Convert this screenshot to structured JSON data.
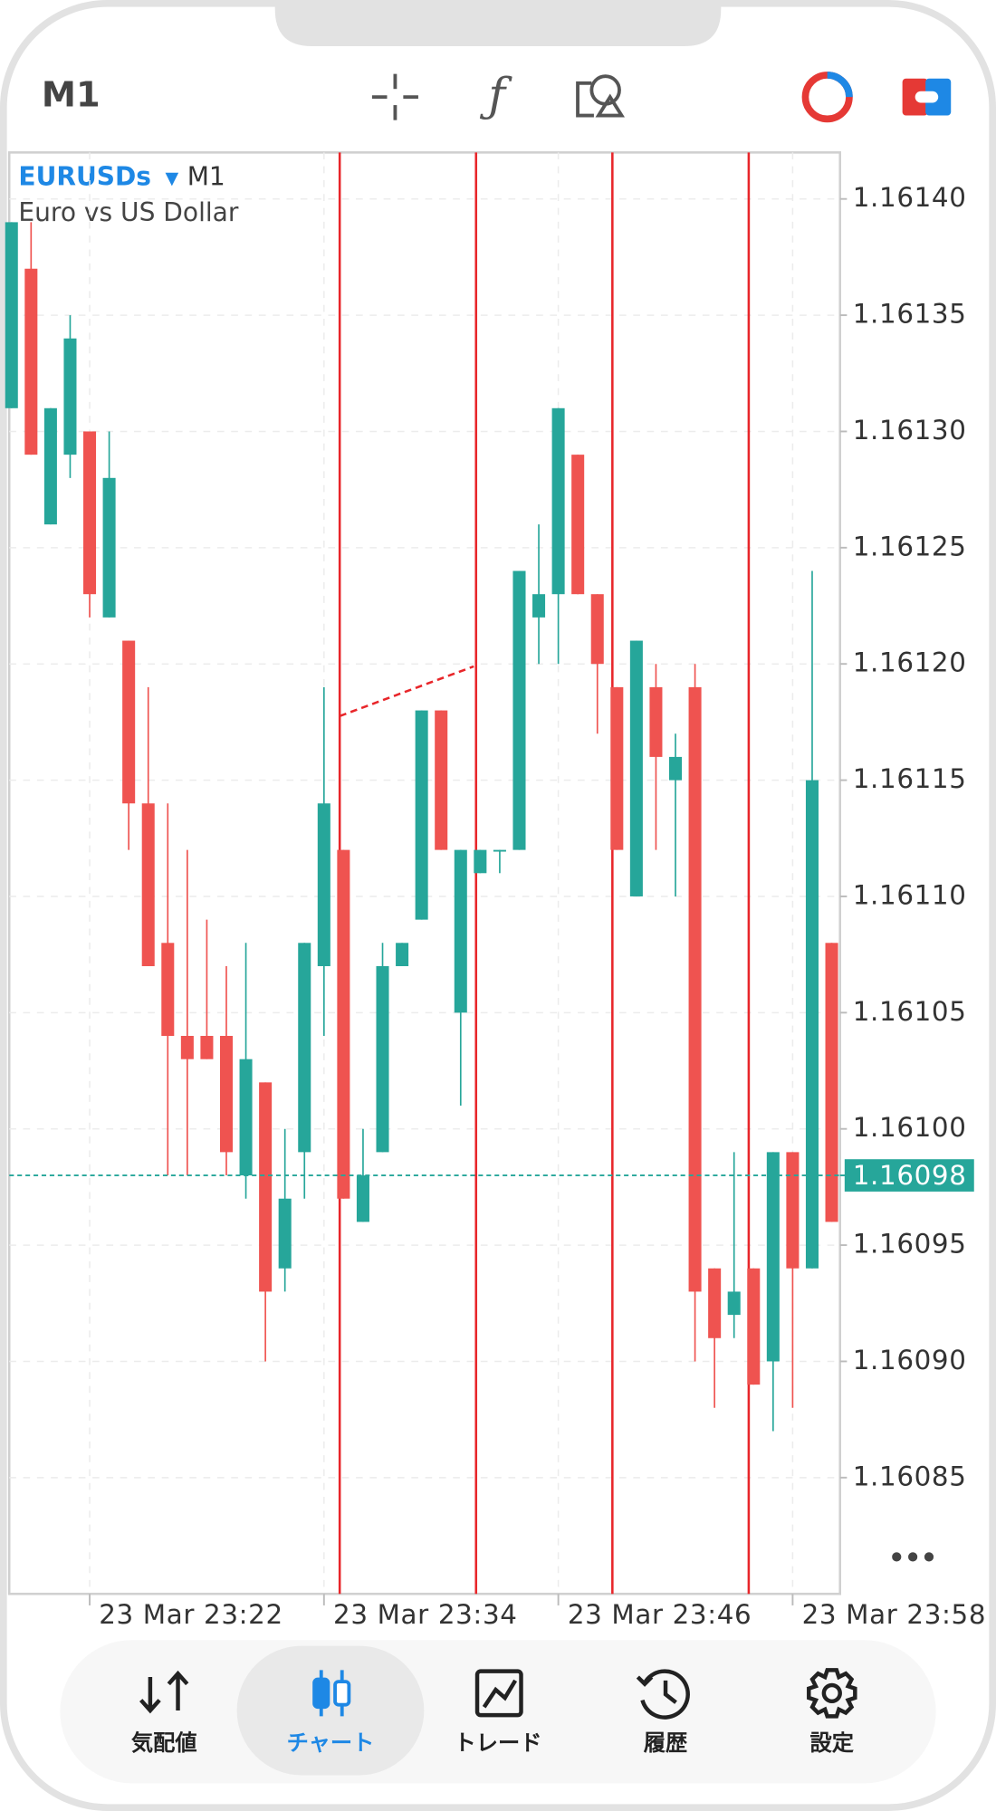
{
  "chart_data": {
    "type": "candlestick",
    "symbol": "EURUSDs",
    "timeframe": "M1",
    "description": "Euro vs US Dollar",
    "categories": [
      null,
      null,
      null,
      null,
      "23 Mar 23:22",
      null,
      null,
      null,
      null,
      null,
      null,
      null,
      null,
      null,
      null,
      null,
      "23 Mar 23:34",
      null,
      null,
      null,
      null,
      null,
      null,
      null,
      null,
      null,
      null,
      null,
      "23 Mar 23:46",
      null,
      null,
      null,
      null,
      null,
      null,
      null,
      null,
      null,
      null,
      null,
      "23 Mar 23:58",
      null,
      null
    ],
    "open": [
      1.16131,
      1.16137,
      1.16126,
      1.16129,
      1.1613,
      1.16122,
      1.16121,
      1.16114,
      1.16108,
      1.16104,
      1.16104,
      1.16104,
      1.16098,
      1.16102,
      1.16094,
      1.16099,
      1.16107,
      1.16112,
      1.16096,
      1.16099,
      1.16107,
      1.16109,
      1.16118,
      1.16105,
      1.16111,
      1.16112,
      1.16112,
      1.16122,
      1.16123,
      1.16129,
      1.16123,
      1.16119,
      1.1611,
      1.16119,
      1.16115,
      1.16119,
      1.16094,
      1.16092,
      1.16094,
      1.1609,
      1.16099,
      1.16094,
      1.16108
    ],
    "high": [
      1.16139,
      1.16139,
      1.16131,
      1.16135,
      1.1613,
      1.1613,
      1.16121,
      1.16119,
      1.16114,
      1.16112,
      1.16109,
      1.16107,
      1.16108,
      1.16102,
      1.161,
      1.16108,
      1.16119,
      1.16112,
      1.161,
      1.16108,
      1.16108,
      1.16118,
      1.16118,
      1.16112,
      1.16112,
      1.16112,
      1.16124,
      1.16126,
      1.16131,
      1.16129,
      1.16123,
      1.16119,
      1.16121,
      1.1612,
      1.16117,
      1.1612,
      1.16094,
      1.16099,
      1.16094,
      1.16099,
      1.16099,
      1.16124,
      1.16108
    ],
    "low": [
      1.16131,
      1.16129,
      1.16126,
      1.16128,
      1.16122,
      1.16122,
      1.16112,
      1.16107,
      1.16098,
      1.16098,
      1.16103,
      1.16098,
      1.16097,
      1.1609,
      1.16093,
      1.16097,
      1.16104,
      1.16097,
      1.16096,
      1.16099,
      1.16107,
      1.16109,
      1.16112,
      1.16101,
      1.16111,
      1.16111,
      1.16112,
      1.1612,
      1.1612,
      1.16123,
      1.16117,
      1.16112,
      1.1611,
      1.16112,
      1.1611,
      1.1609,
      1.16088,
      1.16091,
      1.16089,
      1.16087,
      1.16088,
      1.16094,
      1.16096
    ],
    "close": [
      1.16139,
      1.16129,
      1.16131,
      1.16134,
      1.16123,
      1.16128,
      1.16114,
      1.16107,
      1.16104,
      1.16103,
      1.16103,
      1.16099,
      1.16103,
      1.16093,
      1.16097,
      1.16108,
      1.16114,
      1.16097,
      1.16098,
      1.16107,
      1.16108,
      1.16118,
      1.16112,
      1.16112,
      1.16112,
      1.16112,
      1.16124,
      1.16123,
      1.16131,
      1.16123,
      1.1612,
      1.16112,
      1.16121,
      1.16116,
      1.16116,
      1.16093,
      1.16091,
      1.16093,
      1.16089,
      1.16099,
      1.16094,
      1.16115,
      1.16096
    ],
    "up_color": "#26a69a",
    "down_color": "#ef5350",
    "current_price": 1.16098,
    "ylim": [
      1.1608,
      1.16142
    ],
    "yticks": [
      {
        "value": 1.1614,
        "label": "1.16140"
      },
      1.16135,
      {
        "value": 1.1613,
        "label": "1.16130"
      },
      1.16125,
      {
        "value": 1.1612,
        "label": "1.16120"
      },
      1.16115,
      {
        "value": 1.1611,
        "label": "1.16110"
      },
      1.16105,
      {
        "value": 1.161,
        "label": "1.16100"
      },
      1.16095,
      {
        "value": 1.1609,
        "label": "1.16090"
      },
      1.16085
    ],
    "grid": true
  },
  "tabs": [
    "気配値",
    "チャート",
    "トレード",
    "履歴",
    "設定"
  ],
  "active_tab": 1
}
